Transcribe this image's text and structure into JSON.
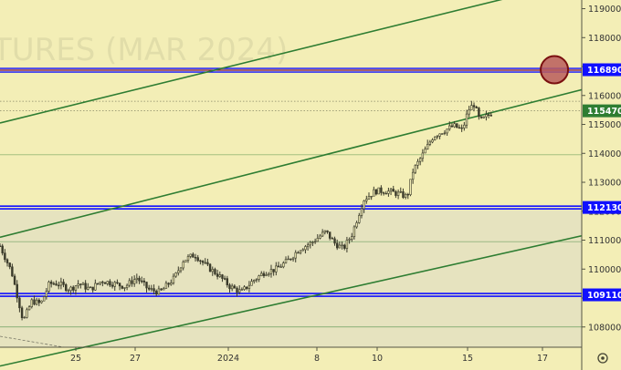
{
  "colors": {
    "background": "#f3eeb6",
    "lower_zone": "#e6e3bf",
    "candle": "#3a3a2a",
    "channel_line": "#2e7d32",
    "level_line": "#1010ff",
    "resistance_line": "#7a0f3c",
    "highlight_circle_fill": "#b85c5c",
    "highlight_circle_edge": "#7a0f0f",
    "price_tag": "#1010ff"
  },
  "watermark": "TURES (MAR 2024)",
  "chart_data": {
    "type": "candlestick",
    "y_axis": {
      "range": [
        107300,
        119300
      ],
      "ticks": [
        119000,
        118000,
        117000,
        116000,
        115000,
        114000,
        113000,
        112000,
        111000,
        110000,
        109000,
        108000
      ]
    },
    "x_axis": {
      "ticks": [
        "25",
        "27",
        "2024",
        "8",
        "10",
        "15",
        "17"
      ]
    },
    "price_tags": [
      {
        "id": "resistance",
        "value": 116890
      },
      {
        "id": "last",
        "value": 115470
      },
      {
        "id": "support_upper",
        "value": 112130
      },
      {
        "id": "support_lower",
        "value": 109110
      }
    ],
    "horizontal_levels": [
      {
        "kind": "double-blue-red",
        "value": 116890
      },
      {
        "kind": "double-blue",
        "value": 112130
      },
      {
        "kind": "double-blue",
        "value": 109110
      },
      {
        "kind": "thin-green",
        "value": 113950
      },
      {
        "kind": "thin-green",
        "value": 110950
      },
      {
        "kind": "thin-green",
        "value": 108000
      },
      {
        "kind": "dotted",
        "value": 115800
      },
      {
        "kind": "dotted",
        "value": 115470
      }
    ],
    "channel_lines": [
      {
        "from": {
          "t": 0,
          "v": 115050
        },
        "to": {
          "t": 1,
          "v": 120000
        }
      },
      {
        "from": {
          "t": 0,
          "v": 111100
        },
        "to": {
          "t": 1,
          "v": 116200
        }
      },
      {
        "from": {
          "t": 0,
          "v": 106650
        },
        "to": {
          "t": 1,
          "v": 111150
        }
      }
    ],
    "highlight_point": {
      "t": 0.953,
      "v": 116890
    },
    "price_path": [
      [
        0.0,
        110800
      ],
      [
        0.02,
        109900
      ],
      [
        0.04,
        108200
      ],
      [
        0.055,
        108900
      ],
      [
        0.07,
        108800
      ],
      [
        0.085,
        109500
      ],
      [
        0.1,
        109500
      ],
      [
        0.12,
        109300
      ],
      [
        0.135,
        109500
      ],
      [
        0.155,
        109300
      ],
      [
        0.175,
        109600
      ],
      [
        0.195,
        109500
      ],
      [
        0.215,
        109400
      ],
      [
        0.235,
        109700
      ],
      [
        0.255,
        109300
      ],
      [
        0.275,
        109200
      ],
      [
        0.3,
        109700
      ],
      [
        0.315,
        110300
      ],
      [
        0.335,
        110500
      ],
      [
        0.355,
        110100
      ],
      [
        0.375,
        109800
      ],
      [
        0.395,
        109400
      ],
      [
        0.415,
        109200
      ],
      [
        0.435,
        109600
      ],
      [
        0.455,
        109900
      ],
      [
        0.475,
        110000
      ],
      [
        0.495,
        110300
      ],
      [
        0.515,
        110700
      ],
      [
        0.535,
        110900
      ],
      [
        0.56,
        111300
      ],
      [
        0.575,
        110900
      ],
      [
        0.59,
        110700
      ],
      [
        0.605,
        111200
      ],
      [
        0.625,
        112400
      ],
      [
        0.645,
        112700
      ],
      [
        0.665,
        112700
      ],
      [
        0.685,
        112600
      ],
      [
        0.7,
        112500
      ],
      [
        0.71,
        113400
      ],
      [
        0.725,
        113900
      ],
      [
        0.745,
        114600
      ],
      [
        0.765,
        114800
      ],
      [
        0.78,
        114950
      ],
      [
        0.795,
        114800
      ],
      [
        0.805,
        115500
      ],
      [
        0.815,
        115700
      ],
      [
        0.825,
        115100
      ],
      [
        0.835,
        115250
      ],
      [
        0.845,
        115400
      ]
    ]
  }
}
